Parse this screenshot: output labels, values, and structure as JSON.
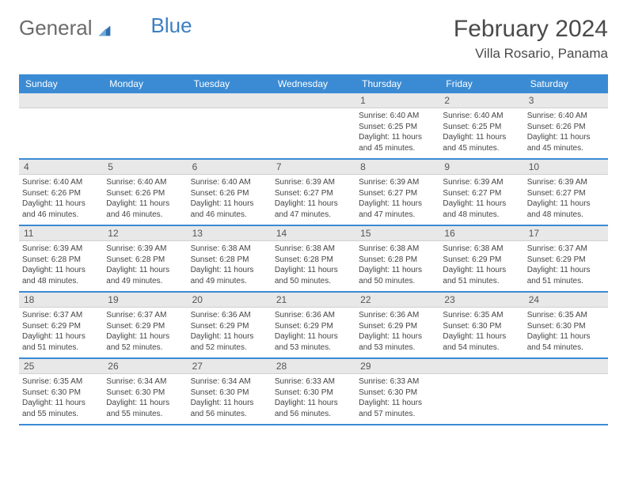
{
  "brand": {
    "part1": "General",
    "part2": "Blue"
  },
  "title": "February 2024",
  "location": "Villa Rosario, Panama",
  "colors": {
    "header_bg": "#3b8bd4",
    "header_text": "#ffffff",
    "daynum_bg": "#e8e8e8",
    "divider": "#3b8bd4",
    "body_text": "#444444",
    "brand_gray": "#6b6b6b",
    "brand_blue": "#3b7fc4"
  },
  "days_of_week": [
    "Sunday",
    "Monday",
    "Tuesday",
    "Wednesday",
    "Thursday",
    "Friday",
    "Saturday"
  ],
  "weeks": [
    [
      {
        "n": "",
        "empty": true
      },
      {
        "n": "",
        "empty": true
      },
      {
        "n": "",
        "empty": true
      },
      {
        "n": "",
        "empty": true
      },
      {
        "n": "1",
        "sunrise": "Sunrise: 6:40 AM",
        "sunset": "Sunset: 6:25 PM",
        "daylight": "Daylight: 11 hours and 45 minutes."
      },
      {
        "n": "2",
        "sunrise": "Sunrise: 6:40 AM",
        "sunset": "Sunset: 6:25 PM",
        "daylight": "Daylight: 11 hours and 45 minutes."
      },
      {
        "n": "3",
        "sunrise": "Sunrise: 6:40 AM",
        "sunset": "Sunset: 6:26 PM",
        "daylight": "Daylight: 11 hours and 45 minutes."
      }
    ],
    [
      {
        "n": "4",
        "sunrise": "Sunrise: 6:40 AM",
        "sunset": "Sunset: 6:26 PM",
        "daylight": "Daylight: 11 hours and 46 minutes."
      },
      {
        "n": "5",
        "sunrise": "Sunrise: 6:40 AM",
        "sunset": "Sunset: 6:26 PM",
        "daylight": "Daylight: 11 hours and 46 minutes."
      },
      {
        "n": "6",
        "sunrise": "Sunrise: 6:40 AM",
        "sunset": "Sunset: 6:26 PM",
        "daylight": "Daylight: 11 hours and 46 minutes."
      },
      {
        "n": "7",
        "sunrise": "Sunrise: 6:39 AM",
        "sunset": "Sunset: 6:27 PM",
        "daylight": "Daylight: 11 hours and 47 minutes."
      },
      {
        "n": "8",
        "sunrise": "Sunrise: 6:39 AM",
        "sunset": "Sunset: 6:27 PM",
        "daylight": "Daylight: 11 hours and 47 minutes."
      },
      {
        "n": "9",
        "sunrise": "Sunrise: 6:39 AM",
        "sunset": "Sunset: 6:27 PM",
        "daylight": "Daylight: 11 hours and 48 minutes."
      },
      {
        "n": "10",
        "sunrise": "Sunrise: 6:39 AM",
        "sunset": "Sunset: 6:27 PM",
        "daylight": "Daylight: 11 hours and 48 minutes."
      }
    ],
    [
      {
        "n": "11",
        "sunrise": "Sunrise: 6:39 AM",
        "sunset": "Sunset: 6:28 PM",
        "daylight": "Daylight: 11 hours and 48 minutes."
      },
      {
        "n": "12",
        "sunrise": "Sunrise: 6:39 AM",
        "sunset": "Sunset: 6:28 PM",
        "daylight": "Daylight: 11 hours and 49 minutes."
      },
      {
        "n": "13",
        "sunrise": "Sunrise: 6:38 AM",
        "sunset": "Sunset: 6:28 PM",
        "daylight": "Daylight: 11 hours and 49 minutes."
      },
      {
        "n": "14",
        "sunrise": "Sunrise: 6:38 AM",
        "sunset": "Sunset: 6:28 PM",
        "daylight": "Daylight: 11 hours and 50 minutes."
      },
      {
        "n": "15",
        "sunrise": "Sunrise: 6:38 AM",
        "sunset": "Sunset: 6:28 PM",
        "daylight": "Daylight: 11 hours and 50 minutes."
      },
      {
        "n": "16",
        "sunrise": "Sunrise: 6:38 AM",
        "sunset": "Sunset: 6:29 PM",
        "daylight": "Daylight: 11 hours and 51 minutes."
      },
      {
        "n": "17",
        "sunrise": "Sunrise: 6:37 AM",
        "sunset": "Sunset: 6:29 PM",
        "daylight": "Daylight: 11 hours and 51 minutes."
      }
    ],
    [
      {
        "n": "18",
        "sunrise": "Sunrise: 6:37 AM",
        "sunset": "Sunset: 6:29 PM",
        "daylight": "Daylight: 11 hours and 51 minutes."
      },
      {
        "n": "19",
        "sunrise": "Sunrise: 6:37 AM",
        "sunset": "Sunset: 6:29 PM",
        "daylight": "Daylight: 11 hours and 52 minutes."
      },
      {
        "n": "20",
        "sunrise": "Sunrise: 6:36 AM",
        "sunset": "Sunset: 6:29 PM",
        "daylight": "Daylight: 11 hours and 52 minutes."
      },
      {
        "n": "21",
        "sunrise": "Sunrise: 6:36 AM",
        "sunset": "Sunset: 6:29 PM",
        "daylight": "Daylight: 11 hours and 53 minutes."
      },
      {
        "n": "22",
        "sunrise": "Sunrise: 6:36 AM",
        "sunset": "Sunset: 6:29 PM",
        "daylight": "Daylight: 11 hours and 53 minutes."
      },
      {
        "n": "23",
        "sunrise": "Sunrise: 6:35 AM",
        "sunset": "Sunset: 6:30 PM",
        "daylight": "Daylight: 11 hours and 54 minutes."
      },
      {
        "n": "24",
        "sunrise": "Sunrise: 6:35 AM",
        "sunset": "Sunset: 6:30 PM",
        "daylight": "Daylight: 11 hours and 54 minutes."
      }
    ],
    [
      {
        "n": "25",
        "sunrise": "Sunrise: 6:35 AM",
        "sunset": "Sunset: 6:30 PM",
        "daylight": "Daylight: 11 hours and 55 minutes."
      },
      {
        "n": "26",
        "sunrise": "Sunrise: 6:34 AM",
        "sunset": "Sunset: 6:30 PM",
        "daylight": "Daylight: 11 hours and 55 minutes."
      },
      {
        "n": "27",
        "sunrise": "Sunrise: 6:34 AM",
        "sunset": "Sunset: 6:30 PM",
        "daylight": "Daylight: 11 hours and 56 minutes."
      },
      {
        "n": "28",
        "sunrise": "Sunrise: 6:33 AM",
        "sunset": "Sunset: 6:30 PM",
        "daylight": "Daylight: 11 hours and 56 minutes."
      },
      {
        "n": "29",
        "sunrise": "Sunrise: 6:33 AM",
        "sunset": "Sunset: 6:30 PM",
        "daylight": "Daylight: 11 hours and 57 minutes."
      },
      {
        "n": "",
        "empty": true
      },
      {
        "n": "",
        "empty": true
      }
    ]
  ]
}
